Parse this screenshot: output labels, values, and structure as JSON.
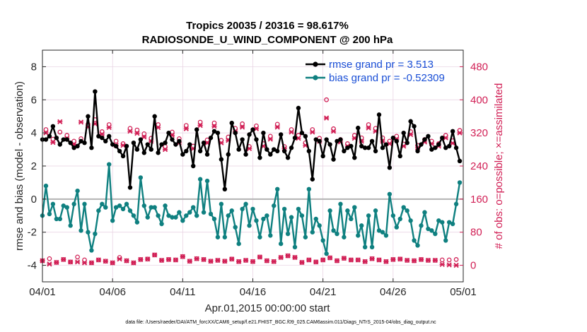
{
  "colors": {
    "rmse": "#000000",
    "bias": "#0f8080",
    "obs": "#d11f55",
    "legend_text": "#1a4fd6",
    "zero_line": "#b3b3b3",
    "grid": "#e6cfe0"
  },
  "chart_data": {
    "type": "line",
    "title": "Tropics 20035 / 20316 = 98.617%",
    "subtitle": "RADIOSONDE_U_WIND_COMPONENT @ 200 hPa",
    "xlabel": "Apr.01,2015 00:00:00 start",
    "ylabel": "rmse and bias (model - observation)",
    "y2label": "# of obs: o=possible; ×=assimilated",
    "footnote": "data file: /Users/raeder/DAI/ATM_forcXX/CAM6_setup/f.e21.FHIST_BGC.f09_025.CAM6assim.011/Diags_NTrS_2015-04/obs_diag_output.nc",
    "xlim": [
      0,
      30
    ],
    "ylim": [
      -5,
      9
    ],
    "y2lim": [
      -40,
      520
    ],
    "x_ticks": [
      0,
      5,
      10,
      15,
      20,
      25,
      30
    ],
    "x_tick_labels": [
      "04/01",
      "04/06",
      "04/11",
      "04/16",
      "04/21",
      "04/26",
      "05/01"
    ],
    "y_ticks": [
      -4,
      -2,
      0,
      2,
      4,
      6,
      8
    ],
    "y_tick_labels": [
      "-4",
      "-2",
      "0",
      "2",
      "4",
      "6",
      "8"
    ],
    "y2_ticks": [
      0,
      80,
      160,
      240,
      320,
      400,
      480
    ],
    "y2_tick_labels": [
      "0",
      "80",
      "160",
      "240",
      "320",
      "400",
      "480"
    ],
    "legend": {
      "location": "top-right",
      "entries": [
        "rmse grand pr = 3.513",
        "bias grand pr = -0.52309"
      ]
    },
    "series": [
      {
        "name": "rmse",
        "x": [
          0,
          0.25,
          0.5,
          0.75,
          1,
          1.25,
          1.5,
          1.75,
          2,
          2.25,
          2.5,
          2.75,
          3,
          3.25,
          3.5,
          3.75,
          4,
          4.25,
          4.5,
          4.75,
          5,
          5.25,
          5.5,
          5.75,
          6,
          6.25,
          6.5,
          6.75,
          7,
          7.25,
          7.5,
          7.75,
          8,
          8.25,
          8.5,
          8.75,
          9,
          9.25,
          9.5,
          9.75,
          10,
          10.25,
          10.5,
          10.75,
          11,
          11.25,
          11.5,
          11.75,
          12,
          12.25,
          12.5,
          12.75,
          13,
          13.25,
          13.5,
          13.75,
          14,
          14.25,
          14.5,
          14.75,
          15,
          15.25,
          15.5,
          15.75,
          16,
          16.25,
          16.5,
          16.75,
          17,
          17.25,
          17.5,
          17.75,
          18,
          18.25,
          18.5,
          18.75,
          19,
          19.25,
          19.5,
          19.75,
          20,
          20.25,
          20.5,
          20.75,
          21,
          21.25,
          21.5,
          21.75,
          22,
          22.25,
          22.5,
          22.75,
          23,
          23.25,
          23.5,
          23.75,
          24,
          24.25,
          24.5,
          24.75,
          25,
          25.25,
          25.5,
          25.75,
          26,
          26.25,
          26.5,
          26.75,
          27,
          27.25,
          27.5,
          27.75,
          28,
          28.25,
          28.5,
          28.75,
          29,
          29.25,
          29.5,
          29.75
        ],
        "values": [
          3.6,
          3.6,
          3.8,
          4.4,
          3.7,
          3.3,
          3.6,
          3.6,
          3.4,
          3.1,
          3.2,
          3.5,
          3.4,
          5.0,
          3.1,
          6.5,
          3.8,
          3.7,
          3.5,
          3.8,
          3.3,
          3.2,
          2.9,
          2.6,
          3.2,
          0.7,
          3.4,
          3.0,
          3.6,
          2.8,
          3.3,
          3.0,
          5.0,
          2.8,
          3.3,
          3.4,
          4.0,
          3.6,
          3.3,
          3.5,
          2.7,
          2.9,
          3.3,
          2.0,
          4.2,
          2.9,
          3.4,
          2.7,
          3.7,
          4.1,
          4.0,
          2.4,
          0.6,
          2.7,
          4.6,
          4.0,
          3.0,
          3.6,
          2.7,
          3.9,
          4.2,
          3.6,
          2.5,
          4.0,
          3.0,
          2.7,
          3.0,
          2.9,
          3.9,
          2.9,
          2.5,
          3.1,
          3.7,
          5.5,
          4.0,
          3.8,
          2.9,
          1.2,
          3.6,
          3.5,
          2.6,
          3.6,
          3.3,
          2.4,
          3.5,
          3.6,
          2.9,
          3.1,
          3.2,
          2.5,
          4.3,
          3.2,
          3.1,
          3.1,
          3.5,
          2.9,
          5.1,
          3.1,
          3.3,
          1.9,
          3.7,
          3.5,
          2.6,
          4.0,
          3.4,
          4.7,
          4.4,
          2.9,
          3.3,
          3.6,
          3.8,
          3.0,
          3.1,
          3.3,
          3.7,
          3.1,
          3.2,
          4.1,
          3.1,
          2.3
        ],
        "color": "#000000"
      },
      {
        "name": "bias",
        "x": [
          0,
          0.25,
          0.5,
          0.75,
          1,
          1.25,
          1.5,
          1.75,
          2,
          2.25,
          2.5,
          2.75,
          3,
          3.25,
          3.5,
          3.75,
          4,
          4.25,
          4.5,
          4.75,
          5,
          5.25,
          5.5,
          5.75,
          6,
          6.25,
          6.5,
          6.75,
          7,
          7.25,
          7.5,
          7.75,
          8,
          8.25,
          8.5,
          8.75,
          9,
          9.25,
          9.5,
          9.75,
          10,
          10.25,
          10.5,
          10.75,
          11,
          11.25,
          11.5,
          11.75,
          12,
          12.25,
          12.5,
          12.75,
          13,
          13.25,
          13.5,
          13.75,
          14,
          14.25,
          14.5,
          14.75,
          15,
          15.25,
          15.5,
          15.75,
          16,
          16.25,
          16.5,
          16.75,
          17,
          17.25,
          17.5,
          17.75,
          18,
          18.25,
          18.5,
          18.75,
          19,
          19.25,
          19.5,
          19.75,
          20,
          20.25,
          20.5,
          20.75,
          21,
          21.25,
          21.5,
          21.75,
          22,
          22.25,
          22.5,
          22.75,
          23,
          23.25,
          23.5,
          23.75,
          24,
          24.25,
          24.5,
          24.75,
          25,
          25.25,
          25.5,
          25.75,
          26,
          26.25,
          26.5,
          26.75,
          27,
          27.25,
          27.5,
          27.75,
          28,
          28.25,
          28.5,
          28.75,
          29,
          29.25,
          29.5,
          29.75
        ],
        "values": [
          -1.0,
          0.8,
          -0.9,
          -0.3,
          -1.2,
          -1.2,
          -0.4,
          -0.5,
          -1.6,
          -0.3,
          0.5,
          -1.9,
          -0.3,
          -2.0,
          -3.1,
          -2.1,
          -0.7,
          -0.3,
          -0.5,
          2.1,
          -1.3,
          -0.5,
          -0.4,
          -0.6,
          -0.3,
          -0.7,
          -1.0,
          -1.4,
          1.3,
          -0.4,
          -1.1,
          -0.5,
          -0.5,
          -1.0,
          -1.5,
          -0.4,
          -1.0,
          -1.1,
          -1.1,
          -0.8,
          -1.3,
          -1.0,
          -0.8,
          -0.5,
          -1.0,
          1.2,
          -0.8,
          1.1,
          -0.9,
          -1.2,
          -2.3,
          -0.3,
          -2.3,
          -1.0,
          -0.7,
          -1.7,
          -2.7,
          -0.6,
          -0.3,
          -1.6,
          -0.6,
          -1.3,
          -2.3,
          -1.2,
          -1.0,
          -2.2,
          -0.4,
          0.6,
          -2.7,
          -0.6,
          -2.1,
          -1.1,
          -2.9,
          -0.6,
          -1.0,
          -2.3,
          0.6,
          -2.0,
          -1.2,
          -1.6,
          -2.5,
          -3.3,
          -0.7,
          -1.9,
          -2.1,
          -0.3,
          -2.3,
          -0.7,
          -1.2,
          -0.5,
          -2.2,
          -1.6,
          -2.9,
          -1.0,
          -2.9,
          -0.7,
          -1.9,
          -2.0,
          -2.2,
          0.3,
          -1.0,
          -1.7,
          -1.2,
          -0.5,
          -0.7,
          -1.3,
          -2.5,
          -2.8,
          -1.6,
          -0.8,
          -1.8,
          -1.9,
          -2.1,
          -1.3,
          -1.4,
          -2.5,
          -1.4,
          -1.5,
          -0.3,
          1.0
        ],
        "color": "#0f8080"
      },
      {
        "name": "obs_possible",
        "marker": "o",
        "x": [
          0,
          0.25,
          0.5,
          0.75,
          1,
          1.25,
          1.5,
          1.75,
          2,
          2.25,
          2.5,
          2.75,
          3,
          3.25,
          3.5,
          3.75,
          4,
          4.25,
          4.5,
          4.75,
          5,
          5.25,
          5.5,
          5.75,
          6,
          6.25,
          6.5,
          6.75,
          7,
          7.25,
          7.5,
          7.75,
          8,
          8.25,
          8.5,
          8.75,
          9,
          9.25,
          9.5,
          9.75,
          10,
          10.25,
          10.5,
          10.75,
          11,
          11.25,
          11.5,
          11.75,
          12,
          12.25,
          12.5,
          12.75,
          13,
          13.25,
          13.5,
          13.75,
          14,
          14.25,
          14.5,
          14.75,
          15,
          15.25,
          15.5,
          15.75,
          16,
          16.25,
          16.5,
          16.75,
          17,
          17.25,
          17.5,
          17.75,
          18,
          18.25,
          18.5,
          18.75,
          19,
          19.25,
          19.5,
          19.75,
          20,
          20.25,
          20.5,
          20.75,
          21,
          21.25,
          21.5,
          21.75,
          22,
          22.25,
          22.5,
          22.75,
          23,
          23.25,
          23.5,
          23.75,
          24,
          24.25,
          24.5,
          24.75,
          25,
          25.25,
          25.5,
          25.75,
          26,
          26.25,
          26.5,
          26.75,
          27,
          27.25,
          27.5,
          27.75,
          28,
          28.25,
          28.5,
          28.75,
          29,
          29.25,
          29.5,
          29.75
        ],
        "values": [
          11,
          328,
          16,
          305,
          7,
          322,
          14,
          314,
          8,
          300,
          20,
          306,
          13,
          341,
          6,
          352,
          13,
          323,
          10,
          340,
          6,
          300,
          19,
          294,
          11,
          331,
          6,
          327,
          14,
          318,
          15,
          307,
          25,
          340,
          12,
          287,
          14,
          322,
          13,
          306,
          21,
          338,
          10,
          288,
          16,
          346,
          14,
          303,
          10,
          344,
          12,
          302,
          10,
          310,
          15,
          331,
          9,
          342,
          12,
          287,
          9,
          337,
          20,
          294,
          11,
          312,
          9,
          341,
          19,
          287,
          23,
          328,
          19,
          314,
          7,
          296,
          13,
          328,
          8,
          307,
          13,
          400,
          18,
          330,
          11,
          304,
          17,
          294,
          13,
          314,
          13,
          308,
          9,
          340,
          16,
          331,
          13,
          308,
          9,
          300,
          14,
          312,
          15,
          293,
          12,
          323,
          11,
          290,
          14,
          304,
          12,
          300,
          12,
          294,
          13,
          314,
          13,
          301,
          14,
          326
        ],
        "color": "#d11f55"
      },
      {
        "name": "obs_assimilated",
        "marker": "x",
        "x": [
          0,
          0.25,
          0.5,
          0.75,
          1,
          1.25,
          1.5,
          1.75,
          2,
          2.25,
          2.5,
          2.75,
          3,
          3.25,
          3.5,
          3.75,
          4,
          4.25,
          4.5,
          4.75,
          5,
          5.25,
          5.5,
          5.75,
          6,
          6.25,
          6.5,
          6.75,
          7,
          7.25,
          7.5,
          7.75,
          8,
          8.25,
          8.5,
          8.75,
          9,
          9.25,
          9.5,
          9.75,
          10,
          10.25,
          10.5,
          10.75,
          11,
          11.25,
          11.5,
          11.75,
          12,
          12.25,
          12.5,
          12.75,
          13,
          13.25,
          13.5,
          13.75,
          14,
          14.25,
          14.5,
          14.75,
          15,
          15.25,
          15.5,
          15.75,
          16,
          16.25,
          16.5,
          16.75,
          17,
          17.25,
          17.5,
          17.75,
          18,
          18.25,
          18.5,
          18.75,
          19,
          19.25,
          19.5,
          19.75,
          20,
          20.25,
          20.5,
          20.75,
          21,
          21.25,
          21.5,
          21.75,
          22,
          22.25,
          22.5,
          22.75,
          23,
          23.25,
          23.5,
          23.75,
          24,
          24.25,
          24.5,
          24.75,
          25,
          25.25,
          25.5,
          25.75,
          26,
          26.25,
          26.5,
          26.75,
          27,
          27.25,
          27.5,
          27.75,
          28,
          28.25,
          28.5,
          28.75,
          29,
          29.25,
          29.5,
          29.75
        ],
        "values": [
          11,
          320,
          3,
          297,
          7,
          347,
          14,
          306,
          8,
          292,
          8,
          346,
          6,
          334,
          6,
          342,
          13,
          317,
          10,
          333,
          6,
          290,
          15,
          290,
          11,
          324,
          6,
          319,
          14,
          310,
          15,
          300,
          25,
          333,
          12,
          280,
          14,
          314,
          13,
          296,
          21,
          330,
          10,
          282,
          16,
          338,
          14,
          296,
          10,
          336,
          12,
          296,
          10,
          302,
          15,
          324,
          9,
          334,
          12,
          282,
          9,
          330,
          20,
          288,
          11,
          305,
          9,
          334,
          19,
          282,
          23,
          322,
          19,
          307,
          7,
          290,
          13,
          322,
          8,
          300,
          13,
          356,
          18,
          324,
          11,
          298,
          17,
          288,
          13,
          307,
          13,
          300,
          9,
          332,
          16,
          324,
          13,
          300,
          9,
          294,
          14,
          305,
          15,
          288,
          12,
          316,
          11,
          284,
          14,
          298,
          12,
          294,
          12,
          288,
          2,
          308,
          1,
          295,
          0,
          320
        ],
        "color": "#d11f55"
      }
    ]
  }
}
